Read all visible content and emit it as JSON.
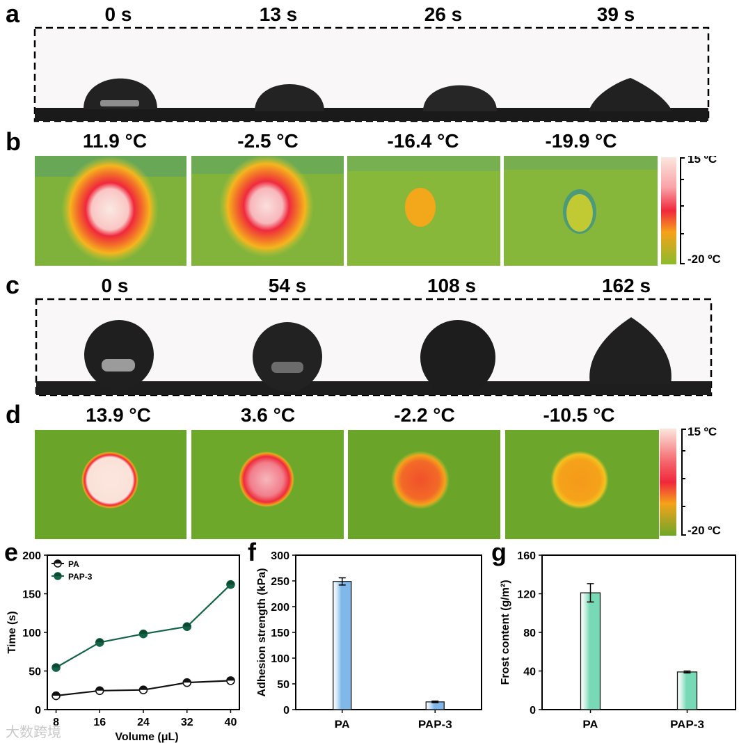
{
  "panels": {
    "a": {
      "letter": "a",
      "captions": [
        "0 s",
        "13 s",
        "26 s",
        "39 s"
      ],
      "frame_content": "droplet side-view photographs"
    },
    "b": {
      "letter": "b",
      "captions": [
        "11.9 °C",
        "-2.5 °C",
        "-16.4 °C",
        "-19.9 °C"
      ],
      "colorbar": {
        "top": "15 ºC",
        "bottom": "-20 ºC"
      }
    },
    "c": {
      "letter": "c",
      "captions": [
        "0 s",
        "54 s",
        "108 s",
        "162 s"
      ]
    },
    "d": {
      "letter": "d",
      "captions": [
        "13.9 °C",
        "3.6 °C",
        "-2.2 °C",
        "-10.5 °C"
      ],
      "colorbar": {
        "top": "15 ºC",
        "bottom": "-20 ºC"
      }
    },
    "e": {
      "letter": "e"
    },
    "f": {
      "letter": "f"
    },
    "g": {
      "letter": "g"
    }
  },
  "thermal_colors": {
    "background_b": "#7fb23a",
    "background_d": "#6aa52a",
    "hot_center": "#fbe7de",
    "red_ring": "#f0283c",
    "orange": "#f5a21a",
    "yellow_green": "#c7c734"
  },
  "watermark": "大数跨境",
  "chart_data": [
    {
      "type": "line",
      "panel": "e",
      "x": [
        8,
        16,
        24,
        32,
        40
      ],
      "xlabel": "Volume (μL)",
      "ylabel": "Time (s)",
      "xticks": [
        "8",
        "16",
        "24",
        "32",
        "40"
      ],
      "yticks": [
        "0",
        "50",
        "100",
        "150",
        "200"
      ],
      "xlim": [
        6.4,
        41.6
      ],
      "ylim": [
        0,
        200
      ],
      "legend_position": "top-left",
      "series": [
        {
          "name": "PA",
          "values": [
            18,
            24.5,
            25.5,
            35,
            37.5
          ],
          "errors": [
            1.5,
            2.5,
            2.5,
            2.5,
            2.5
          ],
          "color": "#111111"
        },
        {
          "name": "PAP-3",
          "values": [
            54.5,
            87,
            98,
            107.5,
            162
          ],
          "errors": [
            2,
            2,
            2,
            2,
            4.5
          ],
          "color": "#136445"
        }
      ]
    },
    {
      "type": "bar",
      "panel": "f",
      "categories": [
        "PA",
        "PAP-3"
      ],
      "values": [
        249,
        15
      ],
      "errors": [
        7,
        1.5
      ],
      "ylabel": "Adhesion strength (kPa)",
      "yticks": [
        "0",
        "50",
        "100",
        "150",
        "200",
        "250",
        "300"
      ],
      "ylim": [
        0,
        300
      ],
      "color": "#7fb8e9"
    },
    {
      "type": "bar",
      "panel": "g",
      "categories": [
        "PA",
        "PAP-3"
      ],
      "values": [
        121,
        39
      ],
      "errors": [
        9.5,
        1
      ],
      "ylabel": "Frost content (g/m²)",
      "yticks": [
        "0",
        "40",
        "80",
        "120",
        "160"
      ],
      "ylim": [
        0,
        160
      ],
      "color": "#77d9b6"
    }
  ]
}
